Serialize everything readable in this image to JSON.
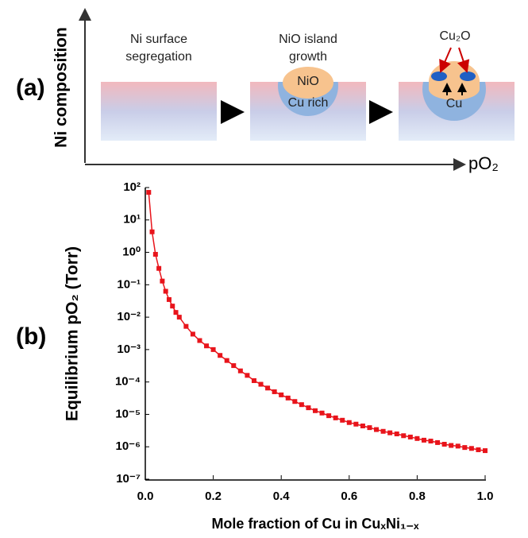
{
  "panel_labels": [
    "(a)",
    "(b)"
  ],
  "diagram": {
    "y_axis_label": "Ni composition",
    "x_axis_label": "pO₂",
    "stage_titles": [
      [
        "Ni surface",
        "segregation"
      ],
      [
        "NiO island",
        "growth"
      ]
    ],
    "labels": {
      "nio": "NiO",
      "cu_rich": "Cu rich",
      "cu2o": "Cu₂O",
      "cu": "Cu"
    }
  },
  "chart_data": {
    "type": "line",
    "y_label": "Equilibrium pO₂ (Torr)",
    "x_label": "Mole fraction of Cu in CuₓNi₁₋ₓ",
    "x": [
      0.01,
      0.02,
      0.03,
      0.04,
      0.05,
      0.06,
      0.07,
      0.08,
      0.09,
      0.1,
      0.12,
      0.14,
      0.16,
      0.18,
      0.2,
      0.22,
      0.24,
      0.26,
      0.28,
      0.3,
      0.32,
      0.34,
      0.36,
      0.38,
      0.4,
      0.42,
      0.44,
      0.46,
      0.48,
      0.5,
      0.52,
      0.54,
      0.56,
      0.58,
      0.6,
      0.62,
      0.64,
      0.66,
      0.68,
      0.7,
      0.72,
      0.74,
      0.76,
      0.78,
      0.8,
      0.82,
      0.84,
      0.86,
      0.88,
      0.9,
      0.92,
      0.94,
      0.96,
      0.98,
      1.0
    ],
    "series": [
      {
        "color": "#e8141b",
        "values": [
          71,
          4.3,
          0.87,
          0.32,
          0.13,
          0.063,
          0.035,
          0.022,
          0.014,
          0.01,
          0.0052,
          0.003,
          0.0019,
          0.0013,
          0.001,
          0.00066,
          0.00046,
          0.00032,
          0.00022,
          0.00016,
          0.00011,
          8.5e-05,
          6.5e-05,
          5e-05,
          4e-05,
          3.2e-05,
          2.5e-05,
          2e-05,
          1.6e-05,
          1.3e-05,
          1.1e-05,
          9.1e-06,
          7.8e-06,
          6.6e-06,
          5.6e-06,
          5e-06,
          4.4e-06,
          3.9e-06,
          3.4e-06,
          3e-06,
          2.7e-06,
          2.5e-06,
          2.2e-06,
          2e-06,
          1.8e-06,
          1.6e-06,
          1.5e-06,
          1.35e-06,
          1.2e-06,
          1.1e-06,
          1.05e-06,
          9.5e-07,
          8.9e-07,
          8.1e-07,
          7.6e-07
        ]
      }
    ],
    "xlim": [
      0,
      1
    ],
    "xticks": [
      {
        "value": 0,
        "label": "0.0"
      },
      0.2,
      0.4,
      0.6,
      0.8,
      {
        "value": 1,
        "label": "1.0"
      }
    ],
    "ylim": [
      1e-07,
      100
    ],
    "yticks": [
      {
        "value": 1e-07,
        "label": "10⁻⁷"
      },
      {
        "value": 1e-06,
        "label": "10⁻⁶"
      },
      {
        "value": 1e-05,
        "label": "10⁻⁵"
      },
      {
        "value": 0.0001,
        "label": "10⁻⁴"
      },
      {
        "value": 0.001,
        "label": "10⁻³"
      },
      {
        "value": 0.01,
        "label": "10⁻²"
      },
      {
        "value": 0.1,
        "label": "10⁻¹"
      },
      {
        "value": 1,
        "label": "10⁰"
      },
      {
        "value": 10,
        "label": "10¹"
      },
      {
        "value": 100,
        "label": "10²"
      }
    ],
    "log_y": true,
    "grid": false,
    "marker": "square"
  }
}
